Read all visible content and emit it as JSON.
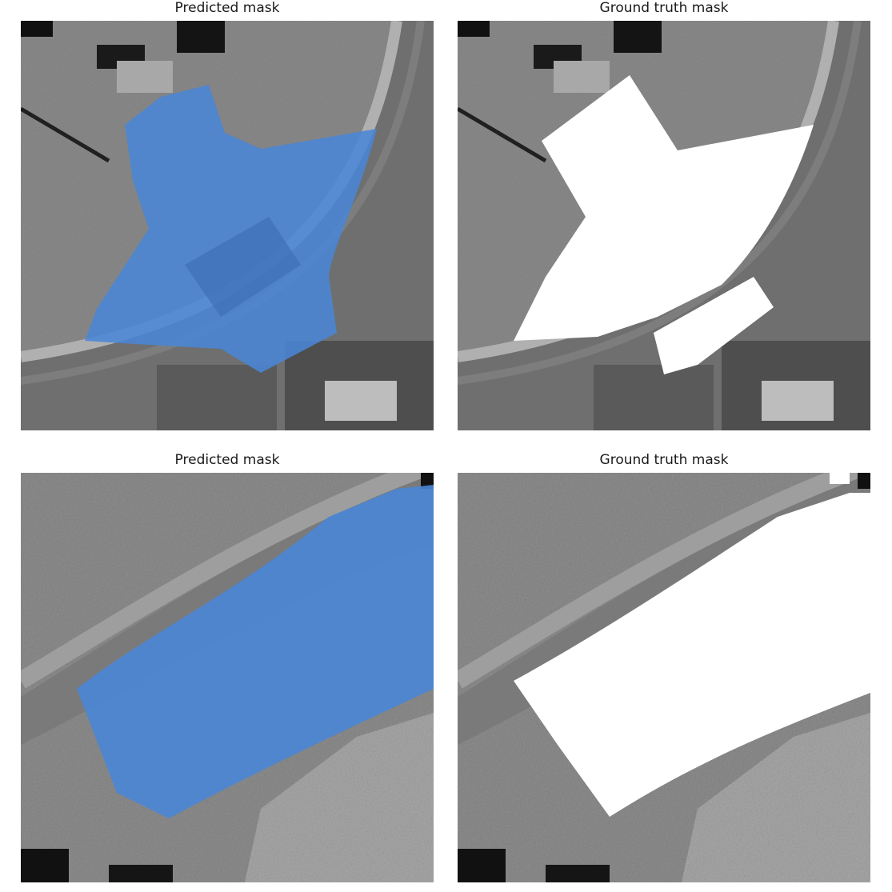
{
  "figure": {
    "panels": [
      {
        "title": "Predicted mask",
        "overlay": "predicted",
        "mask_color": "#4a86d6"
      },
      {
        "title": "Ground truth mask",
        "overlay": "ground-truth",
        "mask_color": "#ffffff"
      },
      {
        "title": "Predicted mask",
        "overlay": "predicted",
        "mask_color": "#4a86d6"
      },
      {
        "title": "Ground truth mask",
        "overlay": "ground-truth",
        "mask_color": "#ffffff"
      }
    ]
  }
}
